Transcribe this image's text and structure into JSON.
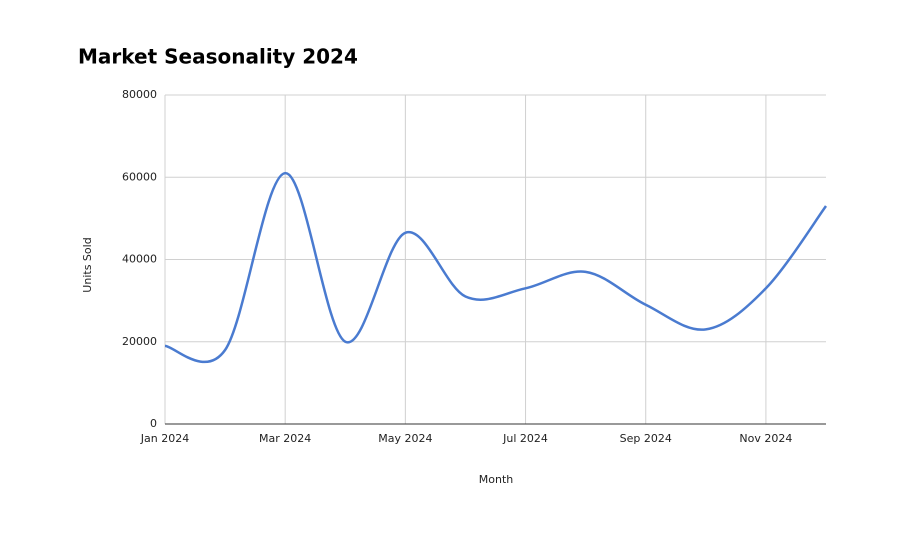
{
  "chart_data": {
    "type": "line",
    "title": "Market Seasonality 2024",
    "x_label": "Month",
    "y_label": "Units Sold",
    "categories": [
      "Jan 2024",
      null,
      "Mar 2024",
      null,
      "May 2024",
      null,
      "Jul 2024",
      null,
      "Sep 2024",
      null,
      "Nov 2024",
      null
    ],
    "series": [
      {
        "name": "Units Sold",
        "color": "#4a7bd0",
        "values": [
          19000,
          18000,
          61000,
          20000,
          46500,
          31000,
          33000,
          37000,
          29000,
          23000,
          33000,
          53000
        ]
      }
    ],
    "ylim": [
      0,
      80000
    ],
    "yticks": [
      0,
      20000,
      40000,
      60000,
      80000
    ],
    "grid": true,
    "smooth": true
  }
}
